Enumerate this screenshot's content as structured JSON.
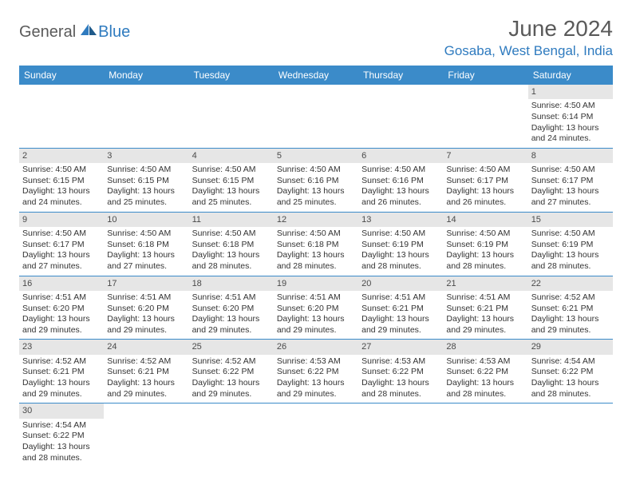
{
  "brand": {
    "part1": "General",
    "part2": "Blue"
  },
  "title": "June 2024",
  "location": "Gosaba, West Bengal, India",
  "colors": {
    "header_bg": "#3b8bc9",
    "header_text": "#ffffff",
    "daynum_bg": "#e6e6e6",
    "row_border": "#3b8bc9",
    "brand_gray": "#5a5a5a",
    "brand_blue": "#2f7bbf"
  },
  "weekdays": [
    "Sunday",
    "Monday",
    "Tuesday",
    "Wednesday",
    "Thursday",
    "Friday",
    "Saturday"
  ],
  "weeks": [
    [
      {
        "n": "",
        "sunrise": "",
        "sunset": "",
        "daylight": ""
      },
      {
        "n": "",
        "sunrise": "",
        "sunset": "",
        "daylight": ""
      },
      {
        "n": "",
        "sunrise": "",
        "sunset": "",
        "daylight": ""
      },
      {
        "n": "",
        "sunrise": "",
        "sunset": "",
        "daylight": ""
      },
      {
        "n": "",
        "sunrise": "",
        "sunset": "",
        "daylight": ""
      },
      {
        "n": "",
        "sunrise": "",
        "sunset": "",
        "daylight": ""
      },
      {
        "n": "1",
        "sunrise": "Sunrise: 4:50 AM",
        "sunset": "Sunset: 6:14 PM",
        "daylight": "Daylight: 13 hours and 24 minutes."
      }
    ],
    [
      {
        "n": "2",
        "sunrise": "Sunrise: 4:50 AM",
        "sunset": "Sunset: 6:15 PM",
        "daylight": "Daylight: 13 hours and 24 minutes."
      },
      {
        "n": "3",
        "sunrise": "Sunrise: 4:50 AM",
        "sunset": "Sunset: 6:15 PM",
        "daylight": "Daylight: 13 hours and 25 minutes."
      },
      {
        "n": "4",
        "sunrise": "Sunrise: 4:50 AM",
        "sunset": "Sunset: 6:15 PM",
        "daylight": "Daylight: 13 hours and 25 minutes."
      },
      {
        "n": "5",
        "sunrise": "Sunrise: 4:50 AM",
        "sunset": "Sunset: 6:16 PM",
        "daylight": "Daylight: 13 hours and 25 minutes."
      },
      {
        "n": "6",
        "sunrise": "Sunrise: 4:50 AM",
        "sunset": "Sunset: 6:16 PM",
        "daylight": "Daylight: 13 hours and 26 minutes."
      },
      {
        "n": "7",
        "sunrise": "Sunrise: 4:50 AM",
        "sunset": "Sunset: 6:17 PM",
        "daylight": "Daylight: 13 hours and 26 minutes."
      },
      {
        "n": "8",
        "sunrise": "Sunrise: 4:50 AM",
        "sunset": "Sunset: 6:17 PM",
        "daylight": "Daylight: 13 hours and 27 minutes."
      }
    ],
    [
      {
        "n": "9",
        "sunrise": "Sunrise: 4:50 AM",
        "sunset": "Sunset: 6:17 PM",
        "daylight": "Daylight: 13 hours and 27 minutes."
      },
      {
        "n": "10",
        "sunrise": "Sunrise: 4:50 AM",
        "sunset": "Sunset: 6:18 PM",
        "daylight": "Daylight: 13 hours and 27 minutes."
      },
      {
        "n": "11",
        "sunrise": "Sunrise: 4:50 AM",
        "sunset": "Sunset: 6:18 PM",
        "daylight": "Daylight: 13 hours and 28 minutes."
      },
      {
        "n": "12",
        "sunrise": "Sunrise: 4:50 AM",
        "sunset": "Sunset: 6:18 PM",
        "daylight": "Daylight: 13 hours and 28 minutes."
      },
      {
        "n": "13",
        "sunrise": "Sunrise: 4:50 AM",
        "sunset": "Sunset: 6:19 PM",
        "daylight": "Daylight: 13 hours and 28 minutes."
      },
      {
        "n": "14",
        "sunrise": "Sunrise: 4:50 AM",
        "sunset": "Sunset: 6:19 PM",
        "daylight": "Daylight: 13 hours and 28 minutes."
      },
      {
        "n": "15",
        "sunrise": "Sunrise: 4:50 AM",
        "sunset": "Sunset: 6:19 PM",
        "daylight": "Daylight: 13 hours and 28 minutes."
      }
    ],
    [
      {
        "n": "16",
        "sunrise": "Sunrise: 4:51 AM",
        "sunset": "Sunset: 6:20 PM",
        "daylight": "Daylight: 13 hours and 29 minutes."
      },
      {
        "n": "17",
        "sunrise": "Sunrise: 4:51 AM",
        "sunset": "Sunset: 6:20 PM",
        "daylight": "Daylight: 13 hours and 29 minutes."
      },
      {
        "n": "18",
        "sunrise": "Sunrise: 4:51 AM",
        "sunset": "Sunset: 6:20 PM",
        "daylight": "Daylight: 13 hours and 29 minutes."
      },
      {
        "n": "19",
        "sunrise": "Sunrise: 4:51 AM",
        "sunset": "Sunset: 6:20 PM",
        "daylight": "Daylight: 13 hours and 29 minutes."
      },
      {
        "n": "20",
        "sunrise": "Sunrise: 4:51 AM",
        "sunset": "Sunset: 6:21 PM",
        "daylight": "Daylight: 13 hours and 29 minutes."
      },
      {
        "n": "21",
        "sunrise": "Sunrise: 4:51 AM",
        "sunset": "Sunset: 6:21 PM",
        "daylight": "Daylight: 13 hours and 29 minutes."
      },
      {
        "n": "22",
        "sunrise": "Sunrise: 4:52 AM",
        "sunset": "Sunset: 6:21 PM",
        "daylight": "Daylight: 13 hours and 29 minutes."
      }
    ],
    [
      {
        "n": "23",
        "sunrise": "Sunrise: 4:52 AM",
        "sunset": "Sunset: 6:21 PM",
        "daylight": "Daylight: 13 hours and 29 minutes."
      },
      {
        "n": "24",
        "sunrise": "Sunrise: 4:52 AM",
        "sunset": "Sunset: 6:21 PM",
        "daylight": "Daylight: 13 hours and 29 minutes."
      },
      {
        "n": "25",
        "sunrise": "Sunrise: 4:52 AM",
        "sunset": "Sunset: 6:22 PM",
        "daylight": "Daylight: 13 hours and 29 minutes."
      },
      {
        "n": "26",
        "sunrise": "Sunrise: 4:53 AM",
        "sunset": "Sunset: 6:22 PM",
        "daylight": "Daylight: 13 hours and 29 minutes."
      },
      {
        "n": "27",
        "sunrise": "Sunrise: 4:53 AM",
        "sunset": "Sunset: 6:22 PM",
        "daylight": "Daylight: 13 hours and 28 minutes."
      },
      {
        "n": "28",
        "sunrise": "Sunrise: 4:53 AM",
        "sunset": "Sunset: 6:22 PM",
        "daylight": "Daylight: 13 hours and 28 minutes."
      },
      {
        "n": "29",
        "sunrise": "Sunrise: 4:54 AM",
        "sunset": "Sunset: 6:22 PM",
        "daylight": "Daylight: 13 hours and 28 minutes."
      }
    ],
    [
      {
        "n": "30",
        "sunrise": "Sunrise: 4:54 AM",
        "sunset": "Sunset: 6:22 PM",
        "daylight": "Daylight: 13 hours and 28 minutes."
      },
      {
        "n": "",
        "sunrise": "",
        "sunset": "",
        "daylight": ""
      },
      {
        "n": "",
        "sunrise": "",
        "sunset": "",
        "daylight": ""
      },
      {
        "n": "",
        "sunrise": "",
        "sunset": "",
        "daylight": ""
      },
      {
        "n": "",
        "sunrise": "",
        "sunset": "",
        "daylight": ""
      },
      {
        "n": "",
        "sunrise": "",
        "sunset": "",
        "daylight": ""
      },
      {
        "n": "",
        "sunrise": "",
        "sunset": "",
        "daylight": ""
      }
    ]
  ]
}
